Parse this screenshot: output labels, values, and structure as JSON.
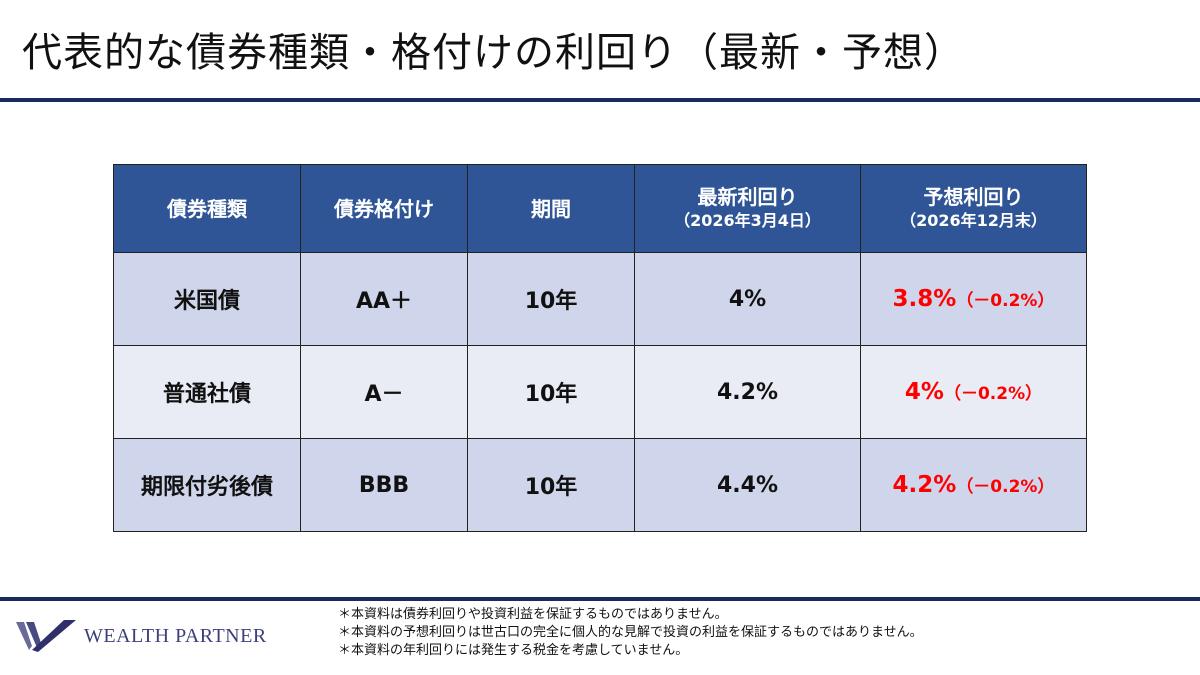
{
  "title": "代表的な債券種類・格付けの利回り（最新・予想）",
  "table": {
    "headers": [
      {
        "main": "債券種類"
      },
      {
        "main": "債券格付け"
      },
      {
        "main": "期間"
      },
      {
        "main": "最新利回り",
        "sub": "（2026年3月4日）"
      },
      {
        "main": "予想利回り",
        "sub": "（2026年12月末）"
      }
    ],
    "rows": [
      {
        "type": "米国債",
        "rating": "AA＋",
        "term": "10年",
        "latest": "4%",
        "forecast": "3.8%",
        "change": "（－0.2%）"
      },
      {
        "type": "普通社債",
        "rating": "A－",
        "term": "10年",
        "latest": "4.2%",
        "forecast": "4%",
        "change": "（－0.2%）"
      },
      {
        "type": "期限付劣後債",
        "rating": "BBB",
        "term": "10年",
        "latest": "4.4%",
        "forecast": "4.2%",
        "change": "（－0.2%）"
      }
    ]
  },
  "colors": {
    "header": "#2F5597",
    "row_dark": "#CFD5EA",
    "row_light": "#E9EBF5",
    "forecast": "#FF0000",
    "rule": "#1A2A5A"
  },
  "footer": {
    "logo": "WEALTH PARTNER",
    "notes": [
      "＊本資料は債券利回りや投資利益を保証するものではありません。",
      "＊本資料の予想利回りは世古口の完全に個人的な見解で投資の利益を保証するものではありません。",
      "＊本資料の年利回りには発生する税金を考慮していません。"
    ]
  }
}
